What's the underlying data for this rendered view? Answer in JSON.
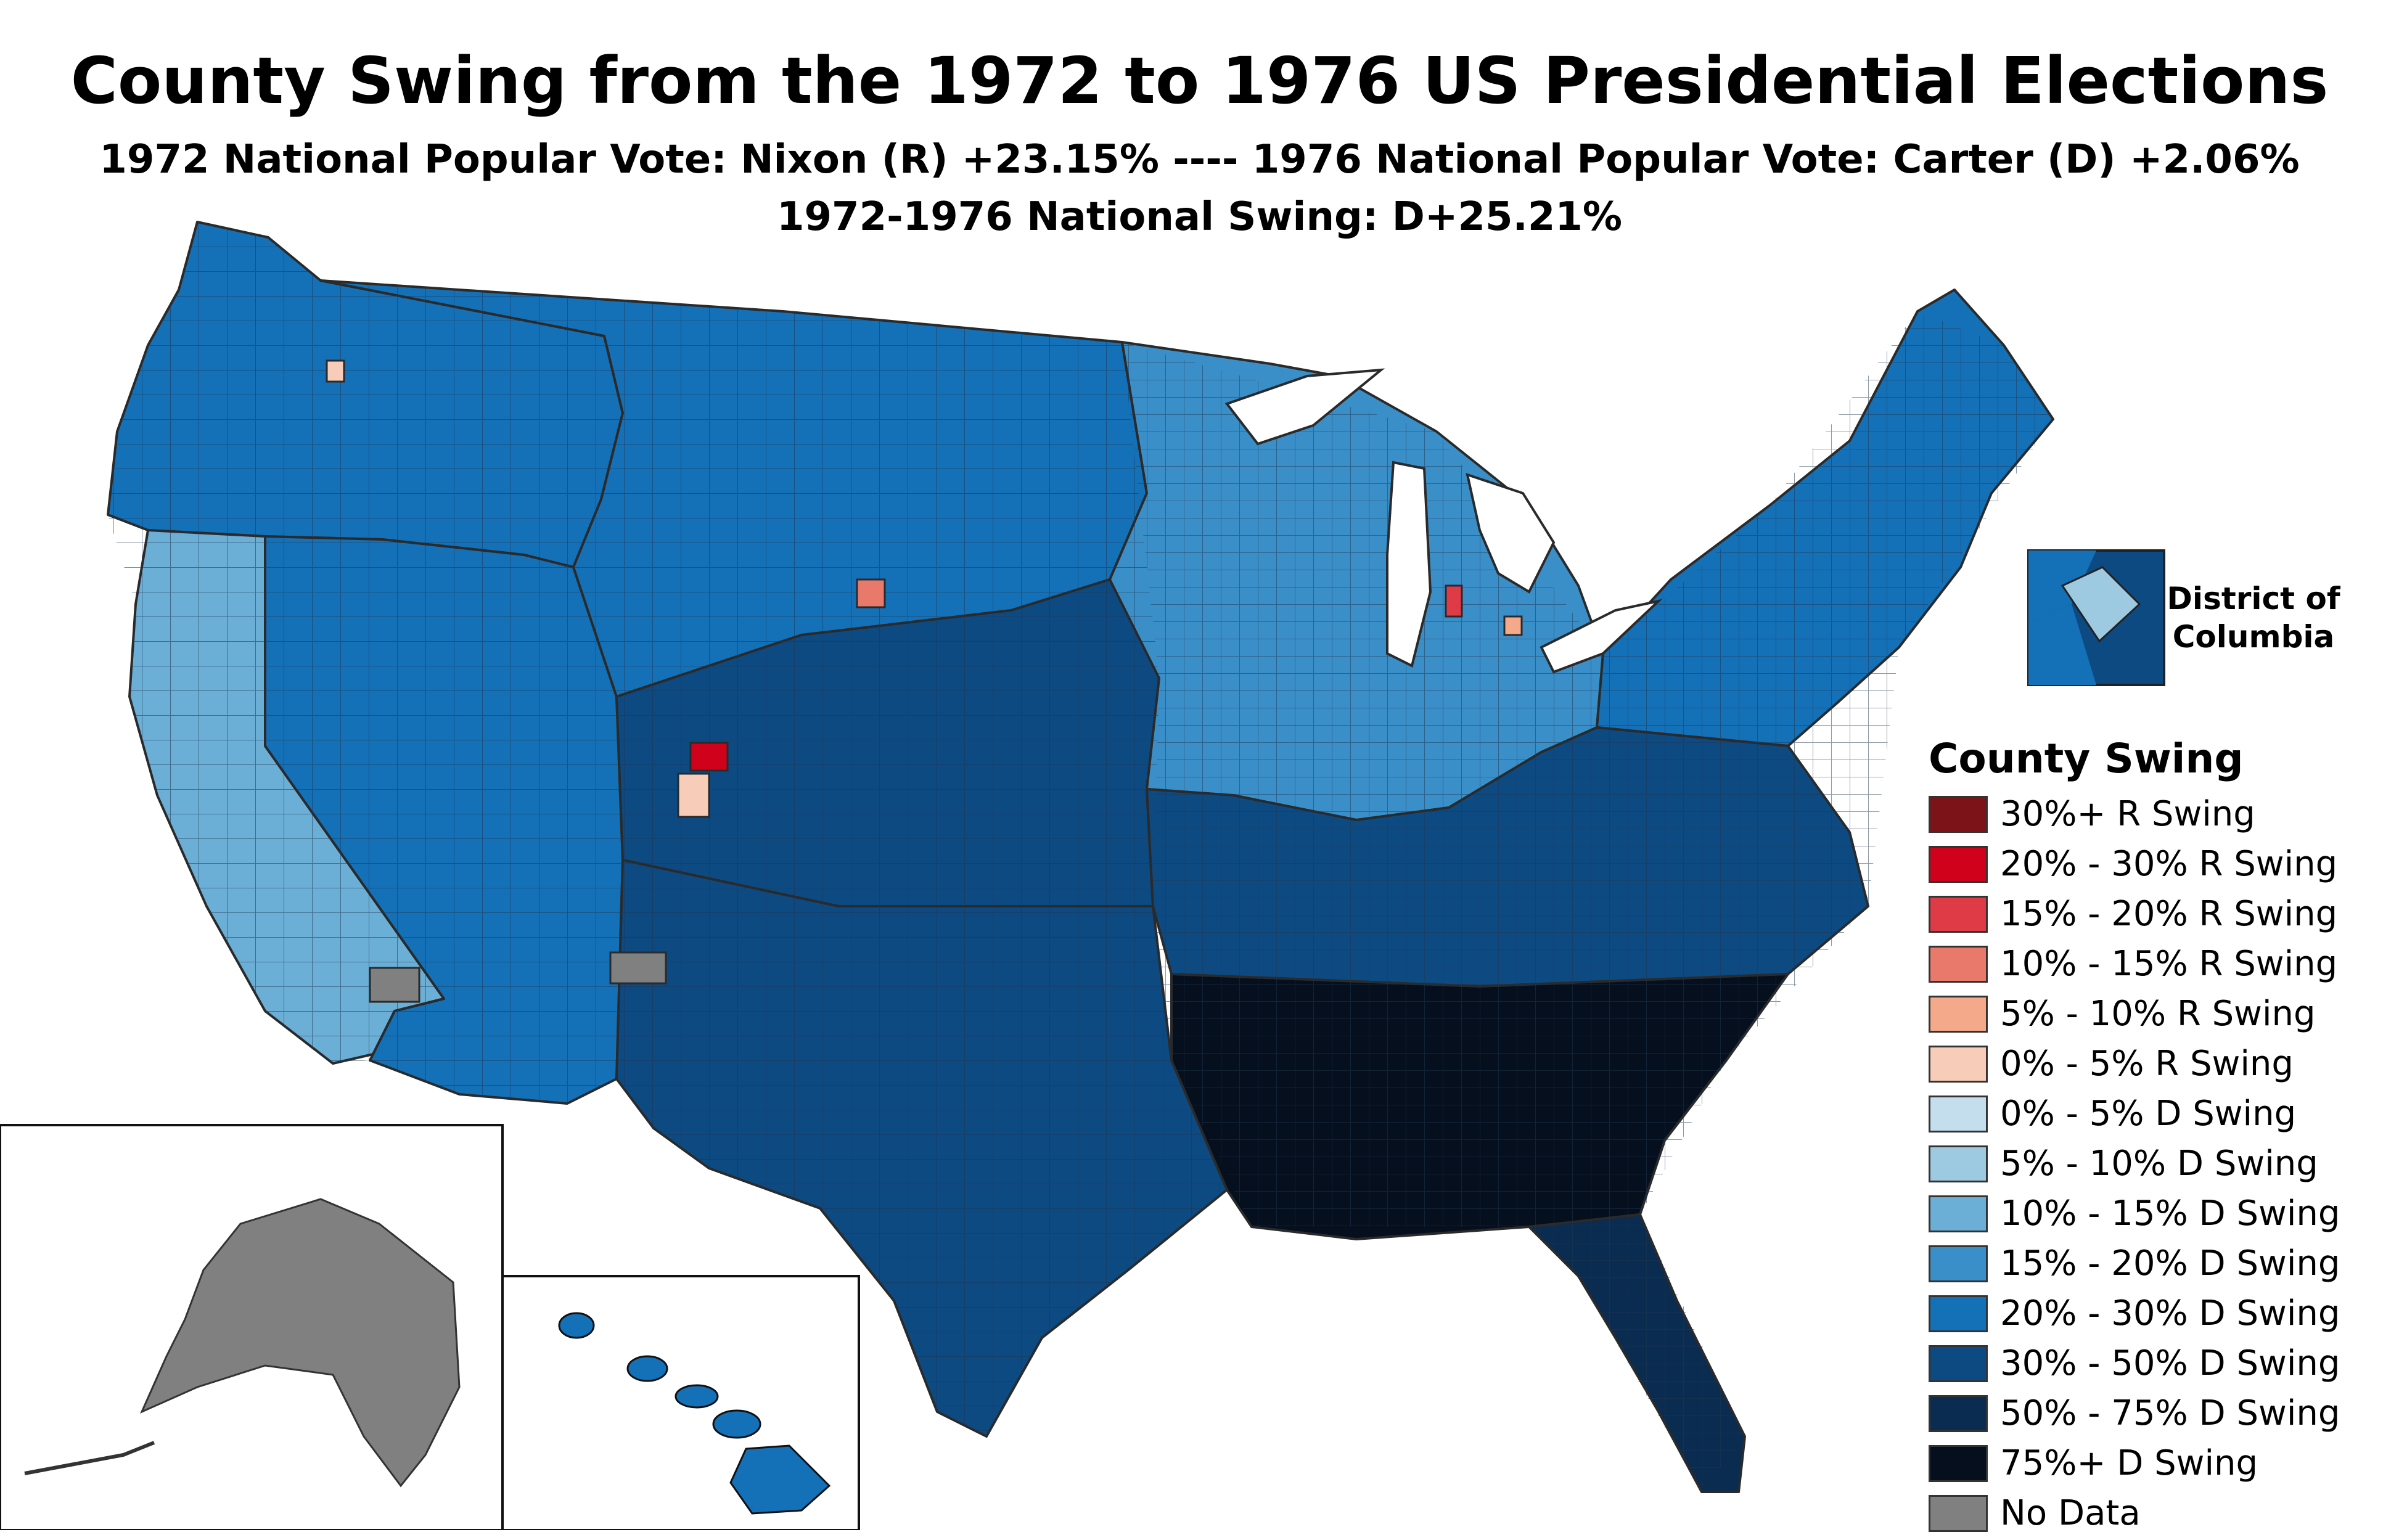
{
  "title": "County Swing from the 1972 to 1976 US Presidential Elections",
  "subtitle_1": "1972 National Popular Vote: Nixon (R) +23.15% ---- 1976 National Popular Vote: Carter (D) +2.06%",
  "subtitle_2": "1972-1976 National Swing: D+25.21%",
  "dc_inset_label": "District of Columbia",
  "legend": {
    "title": "County Swing",
    "items": [
      {
        "label": "30%+ R Swing",
        "color": "#7b1319"
      },
      {
        "label": "20% - 30% R Swing",
        "color": "#d0021b"
      },
      {
        "label": "15% - 20% R Swing",
        "color": "#de3b47"
      },
      {
        "label": "10% - 15% R Swing",
        "color": "#e9796a"
      },
      {
        "label": "5% - 10% R Swing",
        "color": "#f4a98b"
      },
      {
        "label": "0% - 5% R Swing",
        "color": "#f7cdb9"
      },
      {
        "label": "0% - 5% D Swing",
        "color": "#c5deee"
      },
      {
        "label": "5% - 10% D Swing",
        "color": "#9ecae1"
      },
      {
        "label": "10% - 15% D Swing",
        "color": "#6baed6"
      },
      {
        "label": "15% - 20% D Swing",
        "color": "#3b8fc8"
      },
      {
        "label": "20% - 30% D Swing",
        "color": "#1470b7"
      },
      {
        "label": "30% - 50% D Swing",
        "color": "#0d4a82"
      },
      {
        "label": "50% - 75% D Swing",
        "color": "#0a2c50"
      },
      {
        "label": "75%+ D Swing",
        "color": "#050f1d"
      },
      {
        "label": "No Data",
        "color": "#808080"
      }
    ]
  },
  "regions": [
    {
      "name": "pacific-northwest",
      "swing": "20% - 30% D Swing",
      "color": "#1470b7"
    },
    {
      "name": "california",
      "swing": "10% - 15% D Swing",
      "color": "#6baed6"
    },
    {
      "name": "nevada-arizona-utah",
      "swing": "20% - 30% D Swing",
      "color": "#1470b7"
    },
    {
      "name": "northern-plains-rockies",
      "swing": "20% - 30% D Swing",
      "color": "#1470b7"
    },
    {
      "name": "central-plains",
      "swing": "30% - 50% D Swing",
      "color": "#0d4a82"
    },
    {
      "name": "texas-oklahoma",
      "swing": "30% - 50% D Swing",
      "color": "#0d4a82"
    },
    {
      "name": "midwest-great-lakes",
      "swing": "15% - 20% D Swing",
      "color": "#3b8fc8"
    },
    {
      "name": "northeast",
      "swing": "20% - 30% D Swing",
      "color": "#1470b7"
    },
    {
      "name": "upper-south",
      "swing": "30% - 50% D Swing",
      "color": "#0d4a82"
    },
    {
      "name": "deep-south",
      "swing": "75%+ D Swing",
      "color": "#050f1d"
    },
    {
      "name": "florida",
      "swing": "50% - 75% D Swing",
      "color": "#0a2c50"
    },
    {
      "name": "alaska",
      "swing": "No Data",
      "color": "#808080"
    },
    {
      "name": "hawaii",
      "swing": "20% - 30% D Swing",
      "color": "#1470b7"
    }
  ]
}
